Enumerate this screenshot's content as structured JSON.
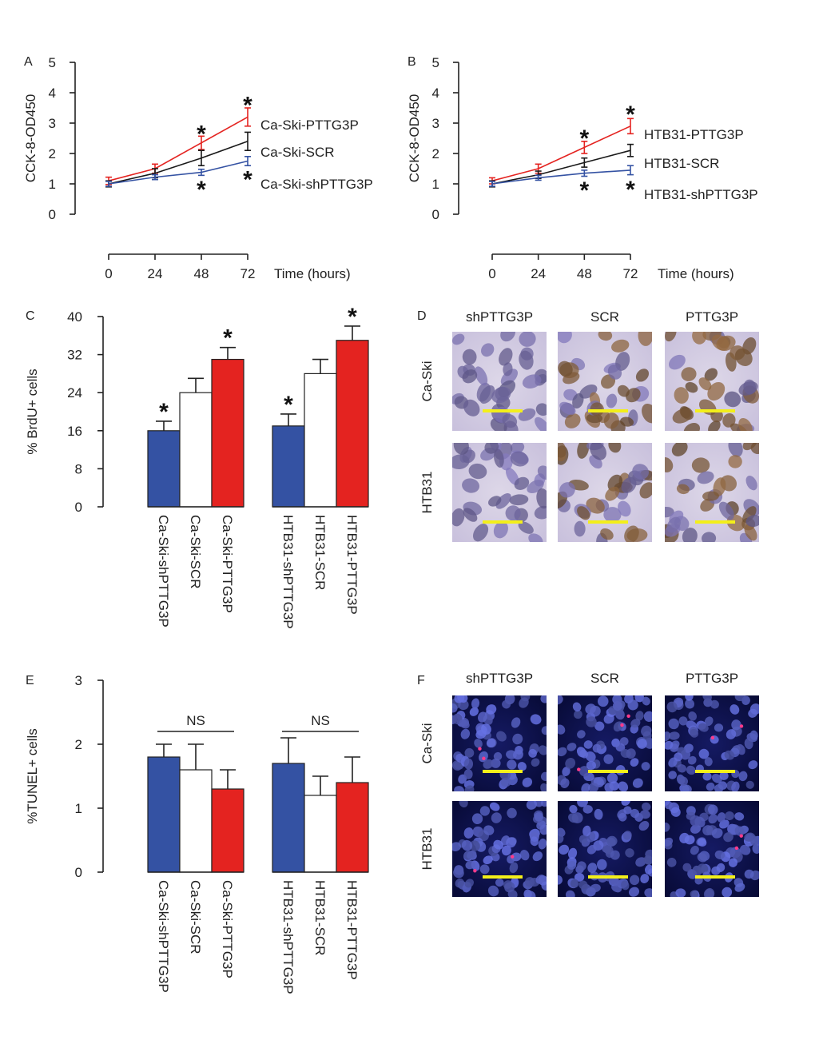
{
  "colors": {
    "red": "#e42320",
    "black": "#1a1a1a",
    "blue": "#3452a3",
    "white": "#ffffff",
    "scale_bar": "#f3ef1a"
  },
  "chart_data": [
    {
      "panel": "A",
      "type": "line",
      "ylabel": "CCK-8-OD450",
      "xlabel": "Time (hours)",
      "x": [
        0,
        24,
        48,
        72
      ],
      "ylim": [
        0,
        5
      ],
      "yticks": [
        0,
        1,
        2,
        3,
        4,
        5
      ],
      "series": [
        {
          "name": "Ca-Ski-PTTG3P",
          "color": "red",
          "values": [
            1.1,
            1.5,
            2.35,
            3.2
          ],
          "errors": [
            0.12,
            0.15,
            0.22,
            0.3
          ]
        },
        {
          "name": "Ca-Ski-SCR",
          "color": "black",
          "values": [
            1.0,
            1.35,
            1.85,
            2.4
          ],
          "errors": [
            0.1,
            0.15,
            0.25,
            0.3
          ]
        },
        {
          "name": "Ca-Ski-shPTTG3P",
          "color": "blue",
          "values": [
            1.0,
            1.22,
            1.38,
            1.75
          ],
          "errors": [
            0.08,
            0.08,
            0.1,
            0.15
          ]
        }
      ],
      "stars": [
        {
          "x": 48,
          "y": 2.75
        },
        {
          "x": 72,
          "y": 3.7
        },
        {
          "x": 48,
          "y": 0.92
        },
        {
          "x": 72,
          "y": 1.25
        }
      ],
      "star_text": "*"
    },
    {
      "panel": "B",
      "type": "line",
      "ylabel": "CCK-8-OD450",
      "xlabel": "Time (hours)",
      "x": [
        0,
        24,
        48,
        72
      ],
      "ylim": [
        0,
        5
      ],
      "yticks": [
        0,
        1,
        2,
        3,
        4,
        5
      ],
      "series": [
        {
          "name": "HTB31-PTTG3P",
          "color": "red",
          "values": [
            1.1,
            1.5,
            2.2,
            2.9
          ],
          "errors": [
            0.1,
            0.15,
            0.2,
            0.25
          ]
        },
        {
          "name": "HTB31-SCR",
          "color": "black",
          "values": [
            1.0,
            1.3,
            1.7,
            2.1
          ],
          "errors": [
            0.1,
            0.12,
            0.15,
            0.2
          ]
        },
        {
          "name": "HTB31-shPTTG3P",
          "color": "blue",
          "values": [
            1.0,
            1.2,
            1.35,
            1.45
          ],
          "errors": [
            0.08,
            0.08,
            0.1,
            0.15
          ]
        }
      ],
      "stars": [
        {
          "x": 48,
          "y": 2.6
        },
        {
          "x": 72,
          "y": 3.4
        },
        {
          "x": 48,
          "y": 0.9
        },
        {
          "x": 72,
          "y": 0.92
        }
      ],
      "star_text": "*"
    },
    {
      "panel": "C",
      "type": "bar",
      "ylabel": "% BrdU+ cells",
      "ylim": [
        0,
        40
      ],
      "yticks": [
        0,
        8,
        16,
        24,
        32,
        40
      ],
      "groups": [
        {
          "categories": [
            "Ca-Ski-shPTTG3P",
            "Ca-Ski-SCR",
            "Ca-Ski-PTTG3P"
          ],
          "colors": [
            "blue",
            "white",
            "red"
          ],
          "values": [
            16,
            24,
            31
          ],
          "errors": [
            2,
            3,
            2.5
          ],
          "stars": [
            true,
            false,
            true
          ]
        },
        {
          "categories": [
            "HTB31-shPTTG3P",
            "HTB31-SCR",
            "HTB31-PTTG3P"
          ],
          "colors": [
            "blue",
            "white",
            "red"
          ],
          "values": [
            17,
            28,
            35
          ],
          "errors": [
            2.5,
            3,
            3
          ],
          "stars": [
            true,
            false,
            true
          ]
        }
      ],
      "star_text": "*"
    },
    {
      "panel": "E",
      "type": "bar",
      "ylabel": "%TUNEL+ cells",
      "ylim": [
        0,
        3
      ],
      "yticks": [
        0,
        1,
        2,
        3
      ],
      "groups": [
        {
          "categories": [
            "Ca-Ski-shPTTG3P",
            "Ca-Ski-SCR",
            "Ca-Ski-PTTG3P"
          ],
          "colors": [
            "blue",
            "white",
            "red"
          ],
          "values": [
            1.8,
            1.6,
            1.3
          ],
          "errors": [
            0.2,
            0.4,
            0.3
          ],
          "annotation": "NS"
        },
        {
          "categories": [
            "HTB31-shPTTG3P",
            "HTB31-SCR",
            "HTB31-PTTG3P"
          ],
          "colors": [
            "blue",
            "white",
            "red"
          ],
          "values": [
            1.7,
            1.2,
            1.4
          ],
          "errors": [
            0.4,
            0.3,
            0.4
          ],
          "annotation": "NS"
        }
      ]
    }
  ],
  "image_panels": [
    {
      "panel": "D",
      "stain": "ihc",
      "columns": [
        "shPTTG3P",
        "SCR",
        "PTTG3P"
      ],
      "rows": [
        "Ca-Ski",
        "HTB31"
      ],
      "positivity": [
        [
          0.0,
          0.4,
          0.75
        ],
        [
          0.0,
          0.5,
          0.7
        ]
      ]
    },
    {
      "panel": "F",
      "stain": "fluorescence",
      "columns": [
        "shPTTG3P",
        "SCR",
        "PTTG3P"
      ],
      "rows": [
        "Ca-Ski",
        "HTB31"
      ],
      "positive_spots": [
        [
          2,
          3,
          2
        ],
        [
          2,
          0,
          2
        ]
      ]
    }
  ]
}
